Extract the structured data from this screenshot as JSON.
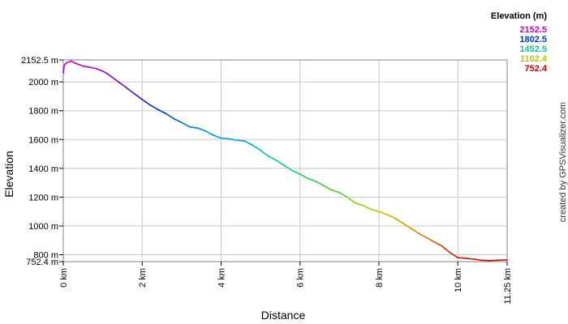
{
  "chart_data": {
    "type": "line",
    "xlabel": "Distance",
    "ylabel": "Elevation",
    "xlim": [
      0,
      11.25
    ],
    "ylim": [
      752.4,
      2152.5
    ],
    "grid": true,
    "x_ticks": [
      {
        "value": 0,
        "label": "0 km"
      },
      {
        "value": 2,
        "label": "2 km"
      },
      {
        "value": 4,
        "label": "4 km"
      },
      {
        "value": 6,
        "label": "6 km"
      },
      {
        "value": 8,
        "label": "8 km"
      },
      {
        "value": 10,
        "label": "10 km"
      },
      {
        "value": 11.25,
        "label": "11.25 km"
      }
    ],
    "y_ticks": [
      {
        "value": 752.4,
        "label": "752.4 m"
      },
      {
        "value": 800,
        "label": "800 m"
      },
      {
        "value": 1000,
        "label": "1000 m"
      },
      {
        "value": 1200,
        "label": "1200 m"
      },
      {
        "value": 1400,
        "label": "1400 m"
      },
      {
        "value": 1600,
        "label": "1600 m"
      },
      {
        "value": 1800,
        "label": "1800 m"
      },
      {
        "value": 2000,
        "label": "2000 m"
      },
      {
        "value": 2152.5,
        "label": "2152.5 m"
      }
    ],
    "legend": {
      "title": "Elevation (m)",
      "position": "top-right",
      "items": [
        {
          "label": "2152.5",
          "value": 2152.5,
          "color": "#cc00cc"
        },
        {
          "label": "1802.5",
          "value": 1802.5,
          "color": "#0033cc"
        },
        {
          "label": "1452.5",
          "value": 1452.5,
          "color": "#00cc99"
        },
        {
          "label": "1102.4",
          "value": 1102.4,
          "color": "#b8c800"
        },
        {
          "label": "752.4",
          "value": 752.4,
          "color": "#cc0000"
        }
      ]
    },
    "color_stops": [
      {
        "value": 752.4,
        "color": "#cc0000"
      },
      {
        "value": 927.4,
        "color": "#e07000"
      },
      {
        "value": 1102.4,
        "color": "#b8c800"
      },
      {
        "value": 1277.5,
        "color": "#33cc33"
      },
      {
        "value": 1452.5,
        "color": "#00cc99"
      },
      {
        "value": 1627.5,
        "color": "#0099dd"
      },
      {
        "value": 1802.5,
        "color": "#0033cc"
      },
      {
        "value": 1977.5,
        "color": "#6600cc"
      },
      {
        "value": 2152.5,
        "color": "#cc00cc"
      }
    ],
    "series": [
      {
        "x": [
          0,
          0.02,
          0.05,
          0.1,
          0.2,
          0.3,
          0.4,
          0.5,
          0.6,
          0.8,
          1.0,
          1.1,
          1.2,
          1.4,
          1.6,
          1.8,
          2.0,
          2.2,
          2.4,
          2.6,
          2.8,
          3.0,
          3.2,
          3.4,
          3.6,
          3.8,
          4.0,
          4.2,
          4.4,
          4.6,
          4.8,
          5.0,
          5.2,
          5.4,
          5.6,
          5.8,
          6.0,
          6.2,
          6.4,
          6.6,
          6.8,
          7.0,
          7.2,
          7.4,
          7.6,
          7.8,
          8.0,
          8.2,
          8.4,
          8.6,
          8.8,
          9.0,
          9.2,
          9.4,
          9.6,
          9.8,
          10.0,
          10.2,
          10.4,
          10.6,
          10.8,
          11.0,
          11.25
        ],
        "y": [
          2060,
          2110,
          2125,
          2135,
          2145,
          2130,
          2120,
          2110,
          2105,
          2095,
          2075,
          2060,
          2040,
          2000,
          1960,
          1918,
          1878,
          1840,
          1808,
          1780,
          1745,
          1718,
          1688,
          1680,
          1660,
          1630,
          1610,
          1605,
          1595,
          1590,
          1560,
          1525,
          1485,
          1455,
          1420,
          1385,
          1360,
          1330,
          1310,
          1280,
          1250,
          1232,
          1200,
          1160,
          1142,
          1115,
          1100,
          1080,
          1055,
          1020,
          985,
          950,
          920,
          890,
          860,
          815,
          780,
          775,
          770,
          762,
          760,
          762,
          765
        ]
      }
    ],
    "credit": "created by GPSVisualizer.com"
  }
}
